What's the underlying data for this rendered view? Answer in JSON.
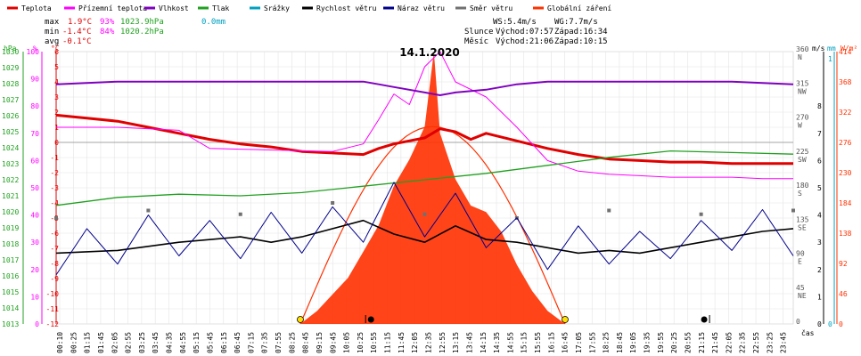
{
  "legend": [
    {
      "label": "Teplota",
      "color": "#e00000"
    },
    {
      "label": "Přízemní teplota",
      "color": "#ff00ff"
    },
    {
      "label": "Vlhkost",
      "color": "#8000c0"
    },
    {
      "label": "Tlak",
      "color": "#20a020"
    },
    {
      "label": "Srážky",
      "color": "#00a0c0"
    },
    {
      "label": "Rychlost větru",
      "color": "#000000"
    },
    {
      "label": "Náraz větru",
      "color": "#00008b"
    },
    {
      "label": "Směr větru",
      "color": "#707070"
    },
    {
      "label": "Globální záření",
      "color": "#ff3000"
    }
  ],
  "stats": {
    "max": {
      "label": "max",
      "temp": "1.9°C",
      "hum": "93%",
      "press": "1023.9hPa",
      "rain": "0.0mm"
    },
    "min": {
      "label": "min",
      "temp": "-1.4°C",
      "hum": "84%",
      "press": "1020.2hPa"
    },
    "avg": {
      "label": "avg",
      "temp": "-0.1°C"
    }
  },
  "info": {
    "ws": "WS:5.4m/s",
    "wg": "WG:7.7m/s",
    "sun_label": "Slunce",
    "sun_rise": "Východ:07:57",
    "sun_set": "Západ:16:34",
    "moon_label": "Měsíc",
    "moon_rise": "Východ:21:06",
    "moon_set": "Západ:10:15"
  },
  "chart_data": {
    "type": "line",
    "title": "14.1.2020",
    "xlabel": "čas",
    "axes": {
      "hpa": {
        "label": "hPa",
        "ticks": [
          1030,
          1029,
          1028,
          1027,
          1026,
          1025,
          1024,
          1023,
          1022,
          1021,
          1020,
          1019,
          1018,
          1017,
          1016,
          1015,
          1014,
          1013
        ],
        "color": "#20a020"
      },
      "pct": {
        "label": "%",
        "ticks": [
          100,
          90,
          80,
          70,
          60,
          50,
          40,
          30,
          20,
          10,
          0
        ],
        "color": "#ff00ff"
      },
      "degc": {
        "label": "°C",
        "ticks": [
          6,
          5,
          4,
          3,
          2,
          1,
          0,
          -1,
          -2,
          -3,
          -4,
          -5,
          -6,
          -7,
          -8,
          -9,
          -10,
          -11,
          -12
        ],
        "color": "#e00000"
      },
      "dir": {
        "ticks": [
          "360",
          "315",
          "270",
          "225",
          "180",
          "135",
          "90",
          "45",
          "0"
        ],
        "letters": [
          "N",
          "NW",
          "W",
          "SW",
          "S",
          "SE",
          "E",
          "NE"
        ],
        "color": "#555555"
      },
      "ms": {
        "label": "m/s",
        "ticks": [
          "8",
          "7",
          "6",
          "5",
          "4",
          "3",
          "2",
          "1",
          "0"
        ],
        "color": "#000000"
      },
      "mm": {
        "label": "mm",
        "ticks": [
          "1",
          "0"
        ],
        "color": "#00a0c0"
      },
      "wm2": {
        "label": "W/m²",
        "ticks": [
          "414",
          "368",
          "322",
          "276",
          "230",
          "184",
          "138",
          "92",
          "46",
          "0"
        ],
        "color": "#ff3000"
      }
    },
    "xticks": [
      "00:10",
      "00:25",
      "01:15",
      "01:45",
      "02:05",
      "02:55",
      "03:25",
      "03:45",
      "04:35",
      "04:55",
      "05:15",
      "05:45",
      "06:15",
      "06:45",
      "07:15",
      "07:35",
      "07:55",
      "08:25",
      "08:45",
      "09:15",
      "09:45",
      "10:05",
      "10:25",
      "10:55",
      "11:15",
      "11:45",
      "12:05",
      "12:35",
      "12:55",
      "13:15",
      "13:45",
      "14:15",
      "14:35",
      "14:55",
      "15:15",
      "15:55",
      "16:15",
      "16:45",
      "17:05",
      "17:55",
      "18:25",
      "18:45",
      "19:05",
      "19:35",
      "19:55",
      "20:25",
      "20:55",
      "21:15",
      "21:45",
      "22:05",
      "22:35",
      "22:55",
      "23:25",
      "23:45"
    ],
    "series": [
      {
        "name": "Teplota",
        "axis": "degc",
        "points": [
          [
            0,
            1.8
          ],
          [
            1,
            1.6
          ],
          [
            2,
            1.4
          ],
          [
            3,
            1.0
          ],
          [
            4,
            0.6
          ],
          [
            5,
            0.2
          ],
          [
            6,
            -0.1
          ],
          [
            7,
            -0.3
          ],
          [
            8,
            -0.6
          ],
          [
            9,
            -0.7
          ],
          [
            10,
            -0.8
          ],
          [
            10.5,
            -0.4
          ],
          [
            11,
            -0.1
          ],
          [
            12,
            0.3
          ],
          [
            12.5,
            0.9
          ],
          [
            13,
            0.7
          ],
          [
            13.5,
            0.2
          ],
          [
            14,
            0.6
          ],
          [
            15,
            0.1
          ],
          [
            16,
            -0.4
          ],
          [
            17,
            -0.8
          ],
          [
            18,
            -1.1
          ],
          [
            19,
            -1.2
          ],
          [
            20,
            -1.3
          ],
          [
            21,
            -1.3
          ],
          [
            22,
            -1.4
          ],
          [
            23,
            -1.4
          ],
          [
            24,
            -1.4
          ]
        ]
      },
      {
        "name": "Přízemní teplota",
        "axis": "degc",
        "points": [
          [
            0,
            1.0
          ],
          [
            2,
            1.0
          ],
          [
            4,
            0.8
          ],
          [
            5,
            -0.4
          ],
          [
            7,
            -0.5
          ],
          [
            9,
            -0.6
          ],
          [
            10,
            -0.1
          ],
          [
            10.5,
            1.5
          ],
          [
            11,
            3.2
          ],
          [
            11.5,
            2.5
          ],
          [
            12,
            5.0
          ],
          [
            12.5,
            6.0
          ],
          [
            13,
            4.0
          ],
          [
            13.5,
            3.5
          ],
          [
            14,
            3.0
          ],
          [
            15,
            1.0
          ],
          [
            16,
            -1.2
          ],
          [
            17,
            -1.9
          ],
          [
            18,
            -2.1
          ],
          [
            19,
            -2.2
          ],
          [
            20,
            -2.3
          ],
          [
            21,
            -2.3
          ],
          [
            22,
            -2.3
          ],
          [
            23,
            -2.4
          ],
          [
            24,
            -2.4
          ]
        ]
      },
      {
        "name": "Vlhkost",
        "axis": "pct",
        "points": [
          [
            0,
            88
          ],
          [
            2,
            89
          ],
          [
            4,
            89
          ],
          [
            6,
            89
          ],
          [
            8,
            89
          ],
          [
            10,
            89
          ],
          [
            10.5,
            88
          ],
          [
            11,
            87
          ],
          [
            12,
            85
          ],
          [
            12.5,
            84
          ],
          [
            13,
            85
          ],
          [
            14,
            86
          ],
          [
            15,
            88
          ],
          [
            16,
            89
          ],
          [
            18,
            89
          ],
          [
            20,
            89
          ],
          [
            22,
            89
          ],
          [
            24,
            88
          ]
        ]
      },
      {
        "name": "Tlak",
        "axis": "hpa",
        "points": [
          [
            0,
            1020.4
          ],
          [
            2,
            1020.9
          ],
          [
            4,
            1021.1
          ],
          [
            6,
            1021.0
          ],
          [
            8,
            1021.2
          ],
          [
            10,
            1021.6
          ],
          [
            12,
            1022.0
          ],
          [
            14,
            1022.4
          ],
          [
            16,
            1022.9
          ],
          [
            18,
            1023.4
          ],
          [
            20,
            1023.8
          ],
          [
            22,
            1023.7
          ],
          [
            24,
            1023.6
          ]
        ]
      },
      {
        "name": "Rychlost větru",
        "axis": "ms",
        "points": [
          [
            0,
            2.6
          ],
          [
            2,
            2.7
          ],
          [
            4,
            3.0
          ],
          [
            6,
            3.2
          ],
          [
            7,
            3.0
          ],
          [
            8,
            3.2
          ],
          [
            10,
            3.8
          ],
          [
            11,
            3.3
          ],
          [
            12,
            3.0
          ],
          [
            13,
            3.6
          ],
          [
            14,
            3.1
          ],
          [
            15,
            3.0
          ],
          [
            16,
            2.8
          ],
          [
            17,
            2.6
          ],
          [
            18,
            2.7
          ],
          [
            19,
            2.6
          ],
          [
            20,
            2.8
          ],
          [
            21,
            3.0
          ],
          [
            22,
            3.2
          ],
          [
            23,
            3.4
          ],
          [
            24,
            3.5
          ]
        ]
      },
      {
        "name": "Náraz větru",
        "axis": "ms",
        "points": [
          [
            0,
            1.8
          ],
          [
            1,
            3.5
          ],
          [
            2,
            2.2
          ],
          [
            3,
            4.0
          ],
          [
            4,
            2.5
          ],
          [
            5,
            3.8
          ],
          [
            6,
            2.4
          ],
          [
            7,
            4.1
          ],
          [
            8,
            2.6
          ],
          [
            9,
            4.3
          ],
          [
            10,
            3.0
          ],
          [
            11,
            5.2
          ],
          [
            12,
            3.2
          ],
          [
            13,
            4.8
          ],
          [
            14,
            2.8
          ],
          [
            15,
            3.9
          ],
          [
            16,
            2.0
          ],
          [
            17,
            3.6
          ],
          [
            18,
            2.2
          ],
          [
            19,
            3.4
          ],
          [
            20,
            2.4
          ],
          [
            21,
            3.8
          ],
          [
            22,
            2.7
          ],
          [
            23,
            4.2
          ],
          [
            24,
            2.5
          ]
        ]
      },
      {
        "name": "Směr větru",
        "axis": "dir",
        "points": [
          [
            0,
            140
          ],
          [
            3,
            150
          ],
          [
            6,
            145
          ],
          [
            9,
            160
          ],
          [
            12,
            145
          ],
          [
            15,
            140
          ],
          [
            18,
            150
          ],
          [
            21,
            145
          ],
          [
            24,
            150
          ]
        ]
      },
      {
        "name": "Globální záření",
        "axis": "wm2",
        "points": [
          [
            7.95,
            0
          ],
          [
            8.5,
            20
          ],
          [
            9,
            45
          ],
          [
            9.5,
            70
          ],
          [
            10,
            110
          ],
          [
            10.5,
            150
          ],
          [
            11,
            210
          ],
          [
            11.5,
            250
          ],
          [
            12,
            300
          ],
          [
            12.3,
            414
          ],
          [
            12.5,
            290
          ],
          [
            13,
            220
          ],
          [
            13.5,
            180
          ],
          [
            14,
            170
          ],
          [
            14.5,
            140
          ],
          [
            15,
            90
          ],
          [
            15.5,
            50
          ],
          [
            16,
            20
          ],
          [
            16.57,
            0
          ]
        ]
      }
    ],
    "clear_sky_max_wm2": 300,
    "events": [
      {
        "time": 7.95,
        "kind": "sunrise"
      },
      {
        "time": 16.57,
        "kind": "sunset"
      },
      {
        "time": 10.25,
        "kind": "moonset"
      },
      {
        "time": 21.1,
        "kind": "moonrise"
      }
    ]
  }
}
